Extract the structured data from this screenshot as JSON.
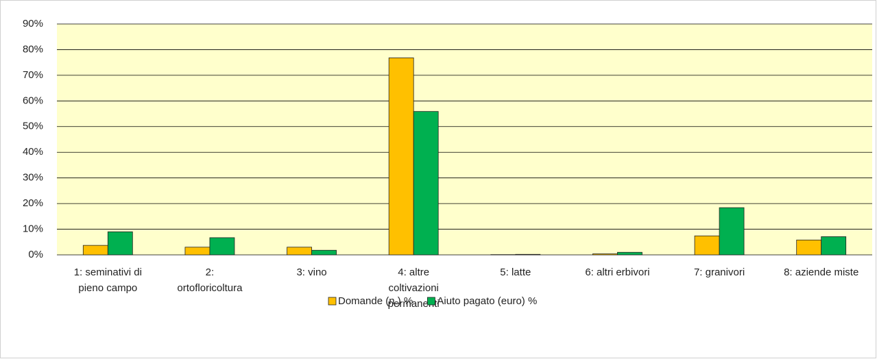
{
  "chart_data": {
    "type": "bar",
    "categories": [
      "1: seminativi di pieno campo",
      "2: ortofloricoltura",
      "3: vino",
      "4: altre coltivazioni permanenti",
      "5: latte",
      "6: altri erbivori",
      "7: granivori",
      "8: aziende miste"
    ],
    "series": [
      {
        "name": "Domande (n.) %",
        "color": "#FFC000",
        "values": [
          3.7,
          3.0,
          3.0,
          76.8,
          0.1,
          0.4,
          7.4,
          5.8
        ]
      },
      {
        "name": "Aiuto pagato (euro) %",
        "color": "#00B050",
        "values": [
          9.0,
          6.7,
          1.8,
          55.9,
          0.2,
          1.0,
          18.4,
          7.1
        ]
      }
    ],
    "ylim": [
      0,
      90
    ],
    "yticks": [
      {
        "value": 0,
        "label": "0%"
      },
      {
        "value": 10,
        "label": "10%"
      },
      {
        "value": 20,
        "label": "20%"
      },
      {
        "value": 30,
        "label": "30%"
      },
      {
        "value": 40,
        "label": "40%"
      },
      {
        "value": 50,
        "label": "50%"
      },
      {
        "value": 60,
        "label": "60%"
      },
      {
        "value": 70,
        "label": "70%"
      },
      {
        "value": 80,
        "label": "80%"
      },
      {
        "value": 90,
        "label": "90%"
      }
    ],
    "grid": true,
    "legend": "bottom",
    "background": "#FFFFCC"
  }
}
